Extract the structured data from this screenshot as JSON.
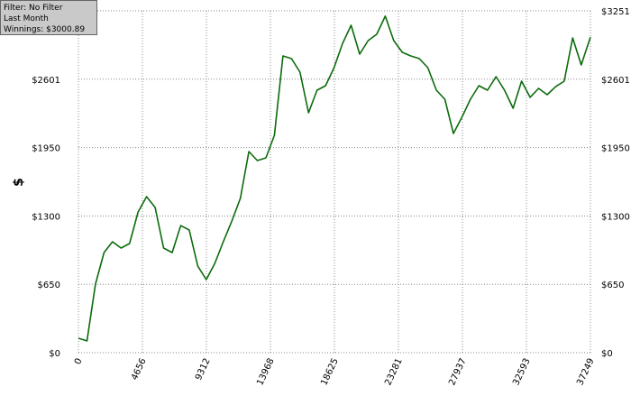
{
  "chart_data": {
    "type": "line",
    "legend_lines": [
      "Filter: No Filter",
      "Last Month",
      "Winnings: $3000.89"
    ],
    "y_label": "$",
    "x": [
      0,
      620,
      1240,
      1860,
      2480,
      3100,
      3720,
      4340,
      4960,
      5580,
      6200,
      6820,
      7440,
      8060,
      8680,
      9300,
      9920,
      10540,
      11160,
      11780,
      12400,
      13020,
      13640,
      14260,
      14880,
      15500,
      16120,
      16740,
      17360,
      17980,
      18600,
      19220,
      19840,
      20460,
      21080,
      21700,
      22320,
      22940,
      23560,
      24180,
      24800,
      25420,
      26040,
      26660,
      27280,
      27900,
      28520,
      29140,
      29760,
      30380,
      31000,
      31620,
      32240,
      32860,
      33480,
      34100,
      34720,
      35340,
      35960,
      36580,
      37249
    ],
    "series": [
      {
        "name": "Winnings",
        "color": "#0b6b0b",
        "values": [
          137,
          112,
          652,
          952,
          1055,
          995,
          1038,
          1338,
          1484,
          1381,
          995,
          952,
          1209,
          1167,
          824,
          695,
          849,
          1055,
          1252,
          1467,
          1913,
          1827,
          1853,
          2067,
          2822,
          2796,
          2668,
          2282,
          2496,
          2539,
          2711,
          2942,
          3114,
          2839,
          2968,
          3028,
          3200,
          2968,
          2856,
          2822,
          2796,
          2711,
          2496,
          2410,
          2084,
          2239,
          2410,
          2539,
          2496,
          2625,
          2496,
          2325,
          2582,
          2428,
          2513,
          2453,
          2530,
          2582,
          2994,
          2736,
          3001
        ]
      }
    ],
    "xlim": [
      0,
      37249
    ],
    "xticks": [
      0,
      4656,
      9312,
      13968,
      18625,
      23281,
      27937,
      32593,
      37249
    ],
    "ylim": [
      0,
      3251
    ],
    "yticks": [
      {
        "value": 0,
        "label": "$0"
      },
      {
        "value": 650,
        "label": "$650"
      },
      {
        "value": 1300,
        "label": "$1300"
      },
      {
        "value": 1950,
        "label": "$1950"
      },
      {
        "value": 2601,
        "label": "$2601"
      },
      {
        "value": 3251,
        "label": "$3251"
      }
    ],
    "grid": true
  }
}
